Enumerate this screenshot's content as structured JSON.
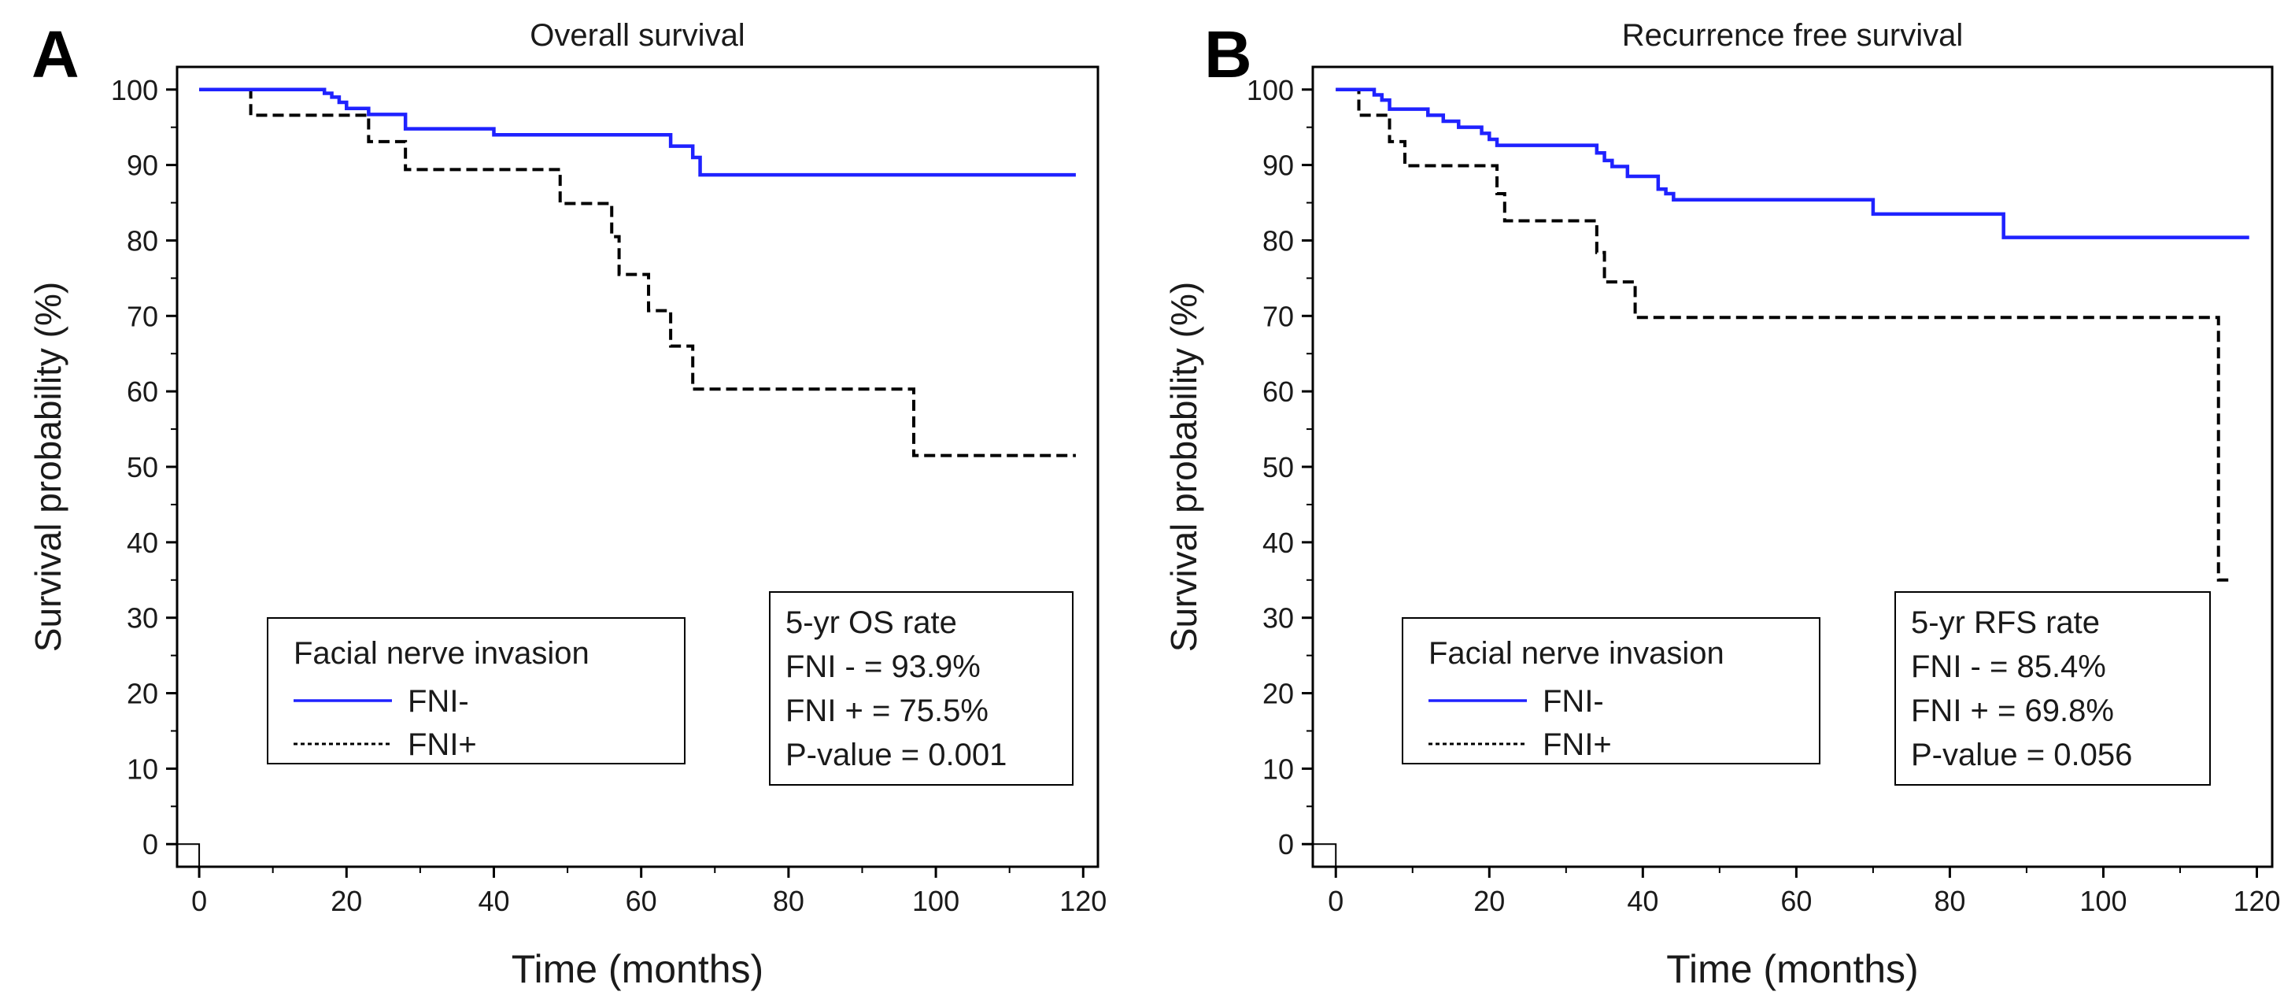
{
  "chart_data": [
    {
      "type": "line",
      "panel_label": "A",
      "title": "Overall survival",
      "xlabel": "Time (months)",
      "ylabel": "Survival probability (%)",
      "xlim": [
        -3,
        122
      ],
      "ylim": [
        -3,
        103
      ],
      "x_ticks": [
        0,
        20,
        40,
        60,
        80,
        100,
        120
      ],
      "y_ticks": [
        0,
        10,
        20,
        30,
        40,
        50,
        60,
        70,
        80,
        90,
        100
      ],
      "legend": {
        "title": "Facial nerve invasion",
        "position": "bottom-left",
        "entries": [
          "FNI-",
          "FNI+"
        ]
      },
      "stats": {
        "title": "5-yr OS rate",
        "lines": [
          "FNI - = 93.9%",
          "FNI + = 75.5%",
          "P-value = 0.001"
        ],
        "position": "bottom-right"
      },
      "series": [
        {
          "name": "FNI-",
          "color": "#1f22ff",
          "style": "solid",
          "x": [
            0,
            16,
            17,
            18,
            19,
            20,
            23,
            28,
            40,
            63,
            64,
            66,
            67,
            68,
            119
          ],
          "y": [
            100,
            100,
            99.5,
            99,
            98.3,
            97.5,
            96.7,
            94.8,
            94,
            94,
            92.5,
            92.5,
            91,
            88.7,
            88.7
          ]
        },
        {
          "name": "FNI+",
          "color": "#000000",
          "style": "dashed",
          "x": [
            0,
            6,
            7,
            22,
            23,
            28,
            48,
            49,
            55,
            56,
            57,
            60,
            61,
            63,
            64,
            66,
            67,
            96,
            97,
            119
          ],
          "y": [
            100,
            100,
            96.6,
            96.6,
            93.1,
            89.4,
            89.4,
            84.9,
            84.9,
            80.5,
            75.5,
            75.5,
            70.7,
            70.7,
            66,
            66,
            60.3,
            60.3,
            51.5,
            51.5
          ]
        }
      ]
    },
    {
      "type": "line",
      "panel_label": "B",
      "title": "Recurrence free survival",
      "xlabel": "Time (months)",
      "ylabel": "Survival probability (%)",
      "xlim": [
        -3,
        122
      ],
      "ylim": [
        -3,
        103
      ],
      "x_ticks": [
        0,
        20,
        40,
        60,
        80,
        100,
        120
      ],
      "y_ticks": [
        0,
        10,
        20,
        30,
        40,
        50,
        60,
        70,
        80,
        90,
        100
      ],
      "legend": {
        "title": "Facial nerve invasion",
        "position": "bottom-left",
        "entries": [
          "FNI-",
          "FNI+"
        ]
      },
      "stats": {
        "title": "5-yr RFS rate",
        "lines": [
          "FNI - = 85.4%",
          "FNI + = 69.8%",
          "P-value = 0.056"
        ],
        "position": "bottom-right"
      },
      "series": [
        {
          "name": "FNI-",
          "color": "#1f22ff",
          "style": "solid",
          "x": [
            0,
            4,
            5,
            6,
            7,
            10,
            12,
            14,
            16,
            18,
            19,
            20,
            21,
            22,
            23,
            33,
            34,
            35,
            36,
            38,
            42,
            43,
            44,
            70,
            87,
            119
          ],
          "y": [
            100,
            100,
            99.3,
            98.6,
            97.4,
            97.4,
            96.6,
            95.8,
            95,
            95,
            94.2,
            93.4,
            92.6,
            92.6,
            92.6,
            92.6,
            91.6,
            90.6,
            89.8,
            88.5,
            86.8,
            86.2,
            85.4,
            83.5,
            80.4,
            80.4
          ]
        },
        {
          "name": "FNI+",
          "color": "#000000",
          "style": "dashed",
          "x": [
            0,
            2,
            3,
            6,
            7,
            9,
            20,
            21,
            22,
            33,
            34,
            35,
            38,
            39,
            114,
            115,
            117
          ],
          "y": [
            100,
            100,
            96.6,
            96.6,
            93.1,
            89.9,
            89.9,
            86.2,
            82.6,
            82.6,
            78.4,
            74.5,
            74.5,
            69.8,
            69.8,
            35,
            35
          ]
        }
      ]
    }
  ]
}
